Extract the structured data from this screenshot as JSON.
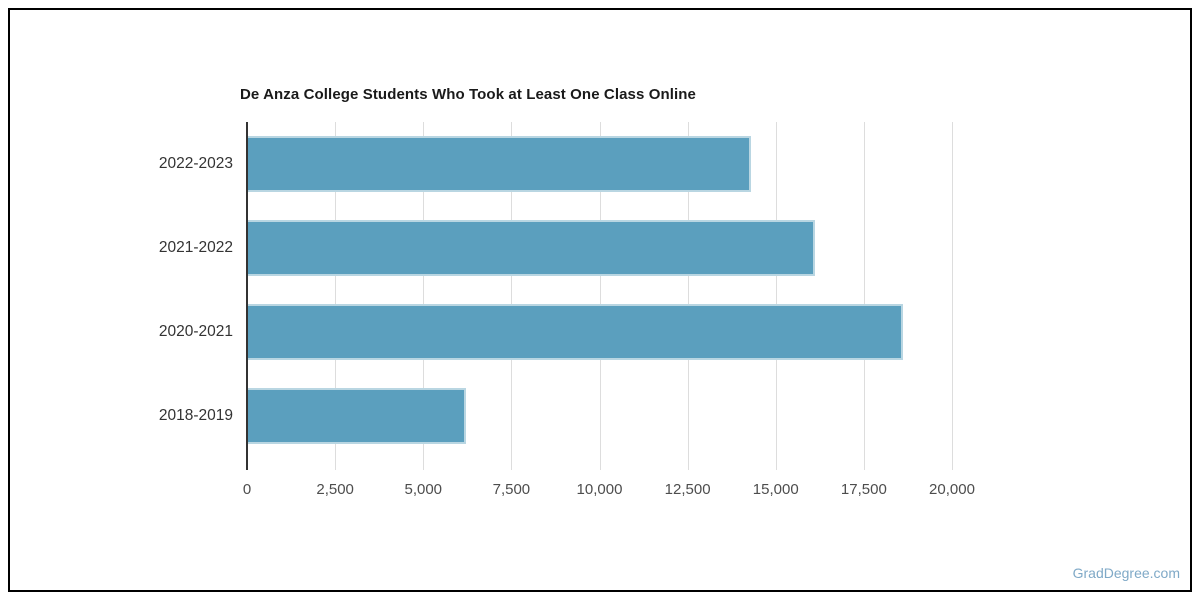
{
  "page": {
    "watermark": "GradDegree.com"
  },
  "colors": {
    "bar_fill": "#5b9fbe",
    "bar_border": "#b9d6e2",
    "gridline": "#dddddd",
    "axis_line": "#333333",
    "title_text": "#1a1a1a",
    "category_text": "#333333",
    "tick_text": "#4d4d4d",
    "watermark_text": "#7fa9c7"
  },
  "chart_data": {
    "type": "bar",
    "orientation": "horizontal",
    "title": "De Anza College Students Who Took at Least One Class Online",
    "categories": [
      "2022-2023",
      "2021-2022",
      "2020-2021",
      "2018-2019"
    ],
    "values": [
      14300,
      16100,
      18600,
      6200
    ],
    "xlabel": "",
    "ylabel": "",
    "xlim": [
      0,
      20000
    ],
    "x_ticks": [
      0,
      2500,
      5000,
      7500,
      10000,
      12500,
      15000,
      17500,
      20000
    ],
    "x_tick_labels": [
      "0",
      "2,500",
      "5,000",
      "7,500",
      "10,000",
      "12,500",
      "15,000",
      "17,500",
      "20,000"
    ],
    "grid": true,
    "legend": false
  }
}
